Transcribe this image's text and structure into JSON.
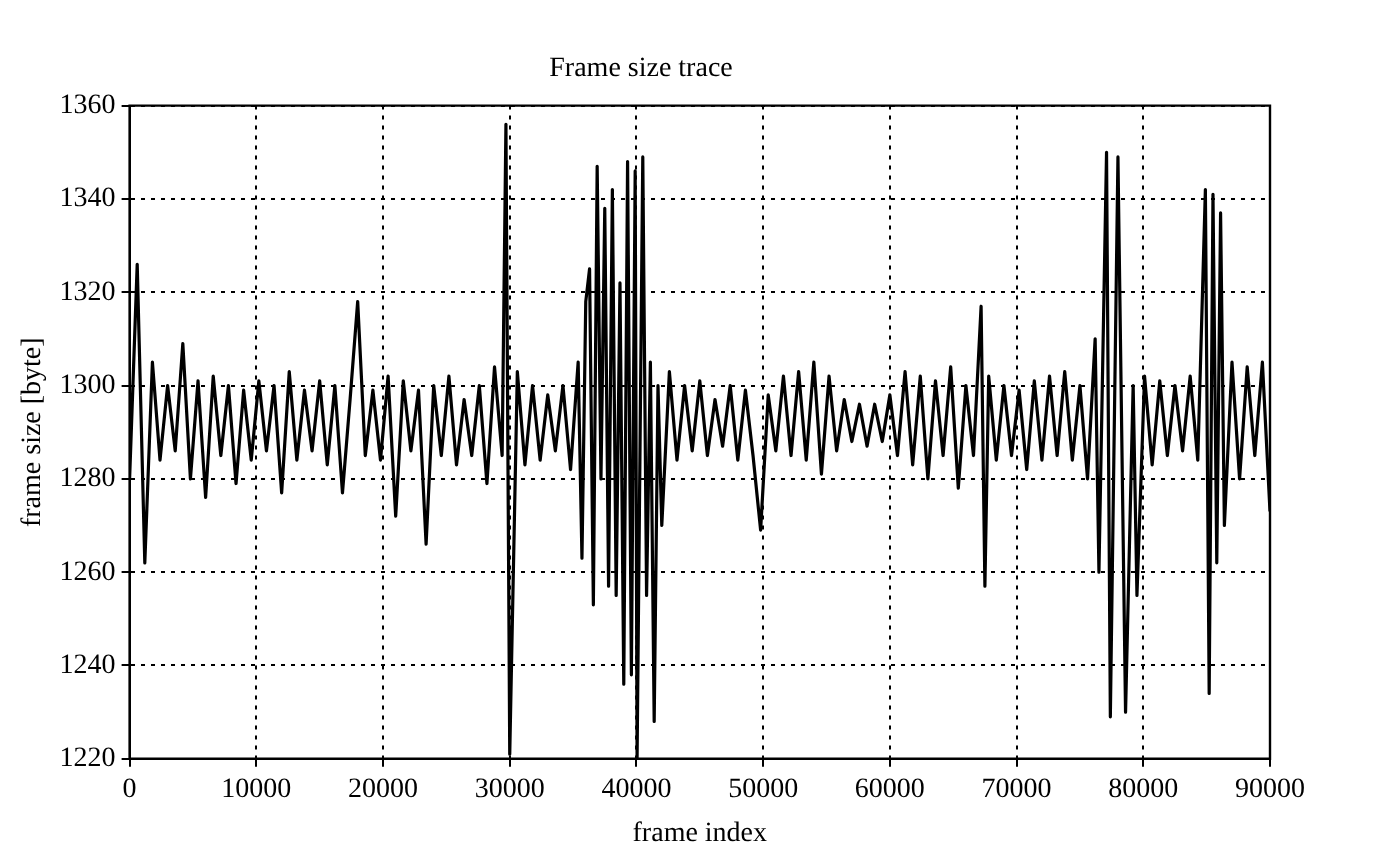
{
  "chart_data": {
    "type": "line",
    "title": "Frame size trace",
    "xlabel": "frame index",
    "ylabel": "frame size [byte]",
    "xlim": [
      0,
      90000
    ],
    "xticks": [
      0,
      10000,
      20000,
      30000,
      40000,
      50000,
      60000,
      70000,
      80000,
      90000
    ],
    "ylim": [
      1220,
      1360
    ],
    "yticks": [
      1220,
      1240,
      1260,
      1280,
      1300,
      1320,
      1340,
      1360
    ],
    "grid": true,
    "legend": false,
    "marker": "none",
    "line_style": "solid",
    "series": [
      {
        "color": "#000000",
        "x": [
          0,
          600,
          1200,
          1800,
          2400,
          3000,
          3600,
          4200,
          4800,
          5400,
          6000,
          6600,
          7200,
          7800,
          8400,
          9000,
          9600,
          10200,
          10800,
          11400,
          12000,
          12600,
          13200,
          13800,
          14400,
          15000,
          15600,
          16200,
          16800,
          17400,
          18000,
          18600,
          19200,
          19800,
          20400,
          21000,
          21600,
          22200,
          22800,
          23400,
          24000,
          24600,
          25200,
          25800,
          26400,
          27000,
          27600,
          28200,
          28800,
          29400,
          29700,
          30000,
          30600,
          31200,
          31800,
          32400,
          33000,
          33600,
          34200,
          34800,
          35400,
          35700,
          36000,
          36300,
          36600,
          36900,
          37200,
          37500,
          37800,
          38100,
          38400,
          38700,
          39000,
          39300,
          39600,
          39900,
          40050,
          40500,
          40800,
          41100,
          41400,
          41700,
          42000,
          42600,
          43200,
          43800,
          44400,
          45000,
          45600,
          46200,
          46800,
          47400,
          48000,
          48600,
          49200,
          49800,
          50400,
          51000,
          51600,
          52200,
          52800,
          53400,
          54000,
          54600,
          55200,
          55800,
          56400,
          57000,
          57600,
          58200,
          58800,
          59400,
          60000,
          60600,
          61200,
          61800,
          62400,
          63000,
          63600,
          64200,
          64800,
          65400,
          66000,
          66600,
          67200,
          67500,
          67800,
          68400,
          69000,
          69600,
          70200,
          70800,
          71400,
          72000,
          72600,
          73200,
          73800,
          74400,
          75000,
          75600,
          76200,
          76500,
          77100,
          77400,
          78000,
          78600,
          79200,
          79500,
          80100,
          80700,
          81300,
          81900,
          82500,
          83100,
          83700,
          84300,
          84900,
          85200,
          85500,
          85800,
          86100,
          86400,
          87000,
          87600,
          88200,
          88800,
          89400,
          90000
        ],
        "values": [
          1280,
          1326,
          1262,
          1305,
          1284,
          1300,
          1286,
          1309,
          1280,
          1301,
          1276,
          1302,
          1285,
          1300,
          1279,
          1299,
          1284,
          1301,
          1286,
          1300,
          1277,
          1303,
          1284,
          1299,
          1286,
          1301,
          1283,
          1300,
          1277,
          1297,
          1318,
          1285,
          1299,
          1284,
          1302,
          1272,
          1301,
          1286,
          1299,
          1266,
          1300,
          1285,
          1302,
          1283,
          1297,
          1285,
          1300,
          1279,
          1304,
          1285,
          1356,
          1221,
          1303,
          1283,
          1300,
          1284,
          1298,
          1286,
          1300,
          1282,
          1305,
          1263,
          1318,
          1325,
          1253,
          1347,
          1280,
          1338,
          1257,
          1342,
          1255,
          1322,
          1236,
          1348,
          1238,
          1346,
          1220,
          1349,
          1255,
          1305,
          1228,
          1300,
          1270,
          1303,
          1284,
          1300,
          1286,
          1301,
          1285,
          1297,
          1287,
          1300,
          1284,
          1299,
          1285,
          1269,
          1298,
          1286,
          1302,
          1285,
          1303,
          1284,
          1305,
          1281,
          1302,
          1286,
          1297,
          1288,
          1296,
          1287,
          1296,
          1288,
          1298,
          1285,
          1303,
          1283,
          1302,
          1280,
          1301,
          1285,
          1304,
          1278,
          1300,
          1285,
          1317,
          1257,
          1302,
          1284,
          1300,
          1285,
          1299,
          1282,
          1301,
          1284,
          1302,
          1285,
          1303,
          1284,
          1300,
          1280,
          1310,
          1260,
          1350,
          1229,
          1349,
          1230,
          1300,
          1255,
          1302,
          1283,
          1301,
          1285,
          1300,
          1286,
          1302,
          1284,
          1342,
          1234,
          1341,
          1262,
          1337,
          1270,
          1305,
          1280,
          1304,
          1285,
          1305,
          1273
        ]
      }
    ]
  }
}
